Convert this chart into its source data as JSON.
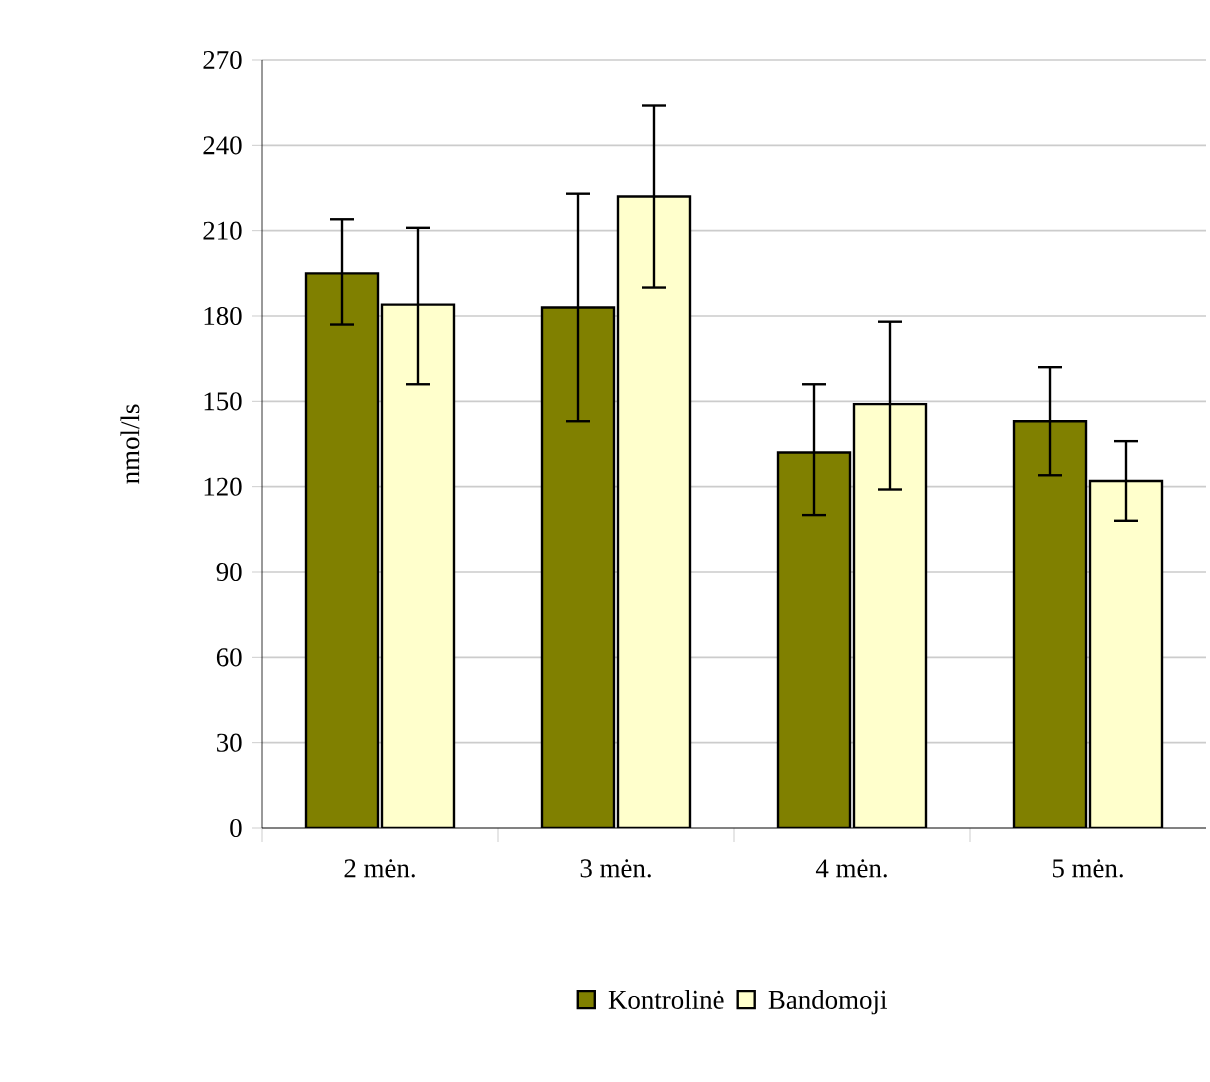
{
  "chart_data": {
    "type": "bar",
    "ylabel": "nmol/ls",
    "categories": [
      "2 mėn.",
      "3 mėn.",
      "4 mėn.",
      "5 mėn."
    ],
    "series": [
      {
        "name": "Kontrolinė",
        "color": "#808000",
        "values": [
          195,
          183,
          132,
          143
        ],
        "errors": [
          [
            177,
            214
          ],
          [
            143,
            223
          ],
          [
            110,
            156
          ],
          [
            124,
            162
          ]
        ]
      },
      {
        "name": "Bandomoji",
        "color": "#ffffcc",
        "values": [
          184,
          222,
          149,
          122
        ],
        "errors": [
          [
            156,
            211
          ],
          [
            190,
            254
          ],
          [
            119,
            178
          ],
          [
            108,
            136
          ]
        ]
      }
    ],
    "ylim": [
      0,
      270
    ],
    "yticks": [
      0,
      30,
      60,
      90,
      120,
      150,
      180,
      210,
      240,
      270
    ],
    "grid": "y",
    "legend": "bottom"
  }
}
